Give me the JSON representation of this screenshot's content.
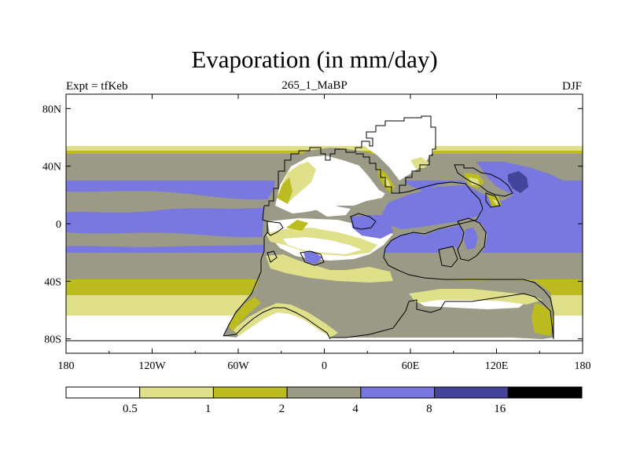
{
  "title": "Evaporation (in mm/day)",
  "left_label": "Expt = tfKeb",
  "center_label": "265_1_MaBP",
  "right_label": "DJF",
  "colors": {
    "lt05": "#ffffff",
    "c05_1": "#e0e08a",
    "c1_2": "#bcbc20",
    "c2_4": "#9a9a86",
    "c4_8": "#7878e0",
    "c8_16": "#44449a",
    "gt16": "#000000",
    "coast": "#000000"
  },
  "map": {
    "x_ticks": [
      "180",
      "120W",
      "60W",
      "0",
      "60E",
      "120E",
      "180"
    ],
    "y_ticks": [
      "80N",
      "40N",
      "0",
      "40S",
      "80S"
    ]
  },
  "colorbar": {
    "labels": [
      "0.5",
      "1",
      "2",
      "4",
      "8",
      "16"
    ]
  },
  "chart_data": {
    "type": "heatmap",
    "title": "Evaporation (in mm/day)",
    "variable_units": "mm/day",
    "x_range": [
      -180,
      180
    ],
    "y_range": [
      -90,
      90
    ],
    "levels": [
      0.5,
      1,
      2,
      4,
      8,
      16
    ],
    "bins": [
      "<0.5",
      "0.5-1",
      "1-2",
      "2-4",
      "4-8",
      "8-16",
      ">16"
    ],
    "zonal_pattern_ocean": [
      {
        "lat_range": [
          63,
          90
        ],
        "bin": "<0.5"
      },
      {
        "lat_range": [
          52,
          63
        ],
        "bin": "0.5-1"
      },
      {
        "lat_range": [
          50,
          52
        ],
        "bin": "1-2"
      },
      {
        "lat_range": [
          30,
          50
        ],
        "bin": "2-4"
      },
      {
        "lat_range": [
          -25,
          30
        ],
        "bin": "4-8"
      },
      {
        "lat_range": [
          -40,
          -25
        ],
        "bin": "2-4"
      },
      {
        "lat_range": [
          -52,
          -40
        ],
        "bin": "1-2"
      },
      {
        "lat_range": [
          -62,
          -52
        ],
        "bin": "0.5-1"
      },
      {
        "lat_range": [
          -90,
          -62
        ],
        "bin": "<0.5"
      }
    ],
    "regional_maximum": {
      "region": "NW Pacific (~140E, 30N)",
      "bin": "8-16"
    }
  }
}
